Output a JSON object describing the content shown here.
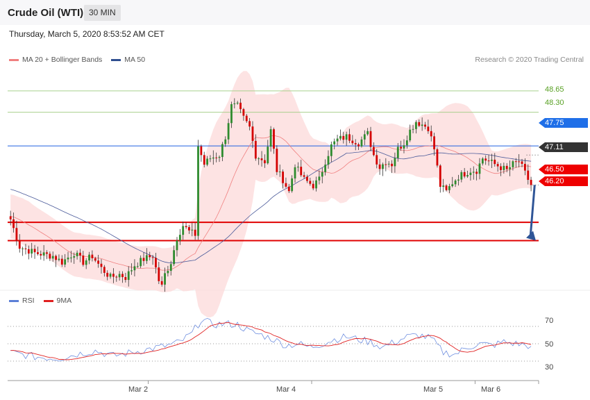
{
  "header": {
    "title": "Crude Oil (WTI)",
    "timeframe": "30 MIN",
    "timestamp": "Thursday, March 5, 2020 8:53:52 AM CET"
  },
  "legend": {
    "ma20": {
      "label": "MA 20 + Bollinger Bands",
      "color": "#f08080"
    },
    "ma50": {
      "label": "MA 50",
      "color": "#2f4f8f"
    },
    "copyright": "Research © 2020 Trading Central"
  },
  "rsi_legend": {
    "rsi": {
      "label": "RSI",
      "color": "#5b7fd6"
    },
    "ma9": {
      "label": "9MA",
      "color": "#e02020"
    }
  },
  "price_axis": {
    "min": 45.4,
    "max": 49.0
  },
  "levels": {
    "r2": {
      "value": 48.65,
      "label": "48.65",
      "color": "#a8d08d"
    },
    "r1": {
      "value": 48.3,
      "label": "48.30",
      "color": "#a8d08d"
    },
    "pivot": {
      "value": 47.75,
      "label": "47.75",
      "color": "#2060e0"
    },
    "last": {
      "value": 47.11,
      "label": "47.11",
      "color": "#333333"
    },
    "s1": {
      "value": 46.5,
      "label": "46.50",
      "color": "#e00000"
    },
    "s2": {
      "value": 46.2,
      "label": "46.20",
      "color": "#e00000"
    }
  },
  "rsi_axis": {
    "ticks": [
      {
        "value": 70,
        "label": "70"
      },
      {
        "value": 50,
        "label": "50"
      },
      {
        "value": 30,
        "label": "30"
      }
    ]
  },
  "dates": [
    {
      "label": "Mar 2",
      "index": 46
    },
    {
      "label": "Mar 4",
      "index": 100
    },
    {
      "label": "Mar 5",
      "index": 154
    },
    {
      "label": "Mar 6",
      "index": 175
    }
  ],
  "chart_data": {
    "type": "candlestick",
    "bar_count": 175,
    "anchors_close": [
      [
        0,
        46.55
      ],
      [
        3,
        46.1
      ],
      [
        8,
        46.0
      ],
      [
        14,
        45.95
      ],
      [
        17,
        45.85
      ],
      [
        21,
        46.0
      ],
      [
        24,
        45.85
      ],
      [
        27,
        45.95
      ],
      [
        30,
        45.75
      ],
      [
        33,
        45.6
      ],
      [
        36,
        45.65
      ],
      [
        38,
        45.6
      ],
      [
        41,
        45.8
      ],
      [
        44,
        45.9
      ],
      [
        47,
        45.95
      ],
      [
        49,
        45.55
      ],
      [
        50,
        45.45
      ],
      [
        51,
        45.65
      ],
      [
        53,
        45.85
      ],
      [
        55,
        46.25
      ],
      [
        57,
        46.45
      ],
      [
        59,
        46.35
      ],
      [
        61,
        46.3
      ],
      [
        62,
        47.75
      ],
      [
        64,
        47.45
      ],
      [
        66,
        47.55
      ],
      [
        69,
        47.6
      ],
      [
        71,
        47.9
      ],
      [
        73,
        48.4
      ],
      [
        75,
        48.4
      ],
      [
        77,
        48.2
      ],
      [
        79,
        48.05
      ],
      [
        81,
        47.6
      ],
      [
        84,
        47.5
      ],
      [
        86,
        48.0
      ],
      [
        88,
        47.35
      ],
      [
        90,
        47.2
      ],
      [
        92,
        47.0
      ],
      [
        94,
        47.45
      ],
      [
        95,
        47.35
      ],
      [
        97,
        47.2
      ],
      [
        100,
        47.1
      ],
      [
        102,
        47.2
      ],
      [
        104,
        47.5
      ],
      [
        106,
        47.75
      ],
      [
        108,
        47.85
      ],
      [
        111,
        47.9
      ],
      [
        113,
        47.85
      ],
      [
        115,
        47.8
      ],
      [
        118,
        47.95
      ],
      [
        120,
        47.6
      ],
      [
        122,
        47.4
      ],
      [
        124,
        47.5
      ],
      [
        126,
        47.45
      ],
      [
        128,
        47.7
      ],
      [
        130,
        47.8
      ],
      [
        132,
        48.0
      ],
      [
        134,
        48.15
      ],
      [
        136,
        48.1
      ],
      [
        138,
        48.05
      ],
      [
        140,
        47.7
      ],
      [
        142,
        47.1
      ],
      [
        144,
        47.0
      ],
      [
        146,
        47.15
      ],
      [
        148,
        47.25
      ],
      [
        150,
        47.3
      ],
      [
        152,
        47.35
      ],
      [
        154,
        47.35
      ],
      [
        156,
        47.55
      ],
      [
        158,
        47.5
      ],
      [
        160,
        47.45
      ],
      [
        162,
        47.4
      ],
      [
        164,
        47.35
      ],
      [
        166,
        47.45
      ],
      [
        168,
        47.5
      ],
      [
        170,
        47.3
      ],
      [
        172,
        47.11
      ]
    ],
    "rsi_anchors": [
      [
        0,
        40
      ],
      [
        8,
        35
      ],
      [
        16,
        33
      ],
      [
        22,
        38
      ],
      [
        28,
        42
      ],
      [
        34,
        36
      ],
      [
        40,
        40
      ],
      [
        46,
        44
      ],
      [
        52,
        48
      ],
      [
        56,
        52
      ],
      [
        60,
        62
      ],
      [
        63,
        78
      ],
      [
        67,
        72
      ],
      [
        71,
        73
      ],
      [
        75,
        72
      ],
      [
        79,
        64
      ],
      [
        83,
        60
      ],
      [
        87,
        55
      ],
      [
        91,
        48
      ],
      [
        95,
        50
      ],
      [
        99,
        46
      ],
      [
        103,
        50
      ],
      [
        107,
        55
      ],
      [
        111,
        58
      ],
      [
        115,
        55
      ],
      [
        119,
        52
      ],
      [
        123,
        46
      ],
      [
        127,
        52
      ],
      [
        131,
        58
      ],
      [
        135,
        60
      ],
      [
        139,
        56
      ],
      [
        143,
        40
      ],
      [
        147,
        38
      ],
      [
        151,
        46
      ],
      [
        155,
        50
      ],
      [
        159,
        48
      ],
      [
        163,
        52
      ],
      [
        167,
        50
      ],
      [
        171,
        48
      ],
      [
        173,
        41
      ]
    ],
    "ma50_start": 47.05,
    "ma20_start": 46.6
  }
}
